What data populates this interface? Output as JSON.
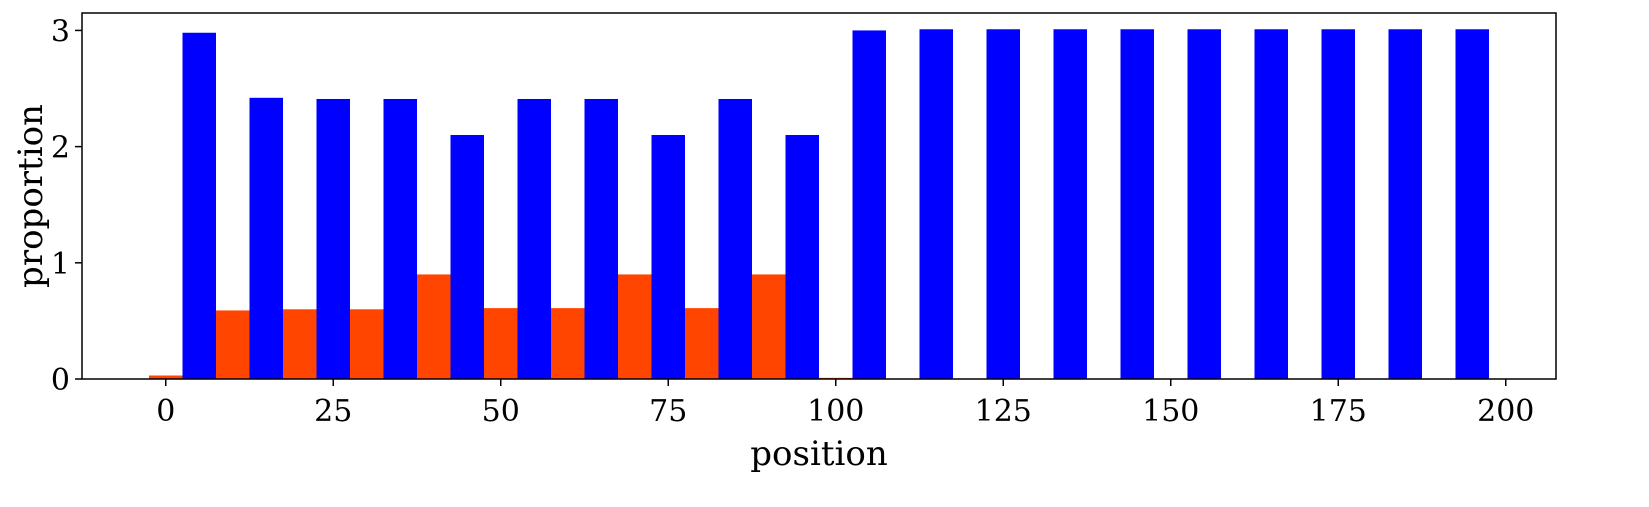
{
  "chart_data": {
    "type": "bar",
    "xlabel": "position",
    "ylabel": "proportion",
    "xlim": [
      -12.5,
      207.5
    ],
    "ylim": [
      0,
      3.15
    ],
    "x_ticks": [
      0,
      25,
      50,
      75,
      100,
      125,
      150,
      175,
      200
    ],
    "y_ticks": [
      0,
      1,
      2,
      3
    ],
    "grid": false,
    "legend": "none",
    "bar_width": 5,
    "positions": [
      0,
      10,
      20,
      30,
      40,
      50,
      60,
      70,
      80,
      90,
      100,
      110,
      120,
      130,
      140,
      150,
      160,
      170,
      180,
      190
    ],
    "series": [
      {
        "color": "#ff4500",
        "offset": 0,
        "values": [
          0.03,
          0.59,
          0.6,
          0.6,
          0.9,
          0.61,
          0.61,
          0.9,
          0.61,
          0.9,
          0.01,
          0,
          0,
          0,
          0,
          0,
          0,
          0,
          0,
          0
        ]
      },
      {
        "color": "#0000ff",
        "offset": 5,
        "values": [
          2.98,
          2.42,
          2.41,
          2.41,
          2.1,
          2.41,
          2.41,
          2.1,
          2.41,
          2.1,
          3.0,
          3.01,
          3.01,
          3.01,
          3.01,
          3.01,
          3.01,
          3.01,
          3.01,
          3.01
        ]
      }
    ]
  }
}
